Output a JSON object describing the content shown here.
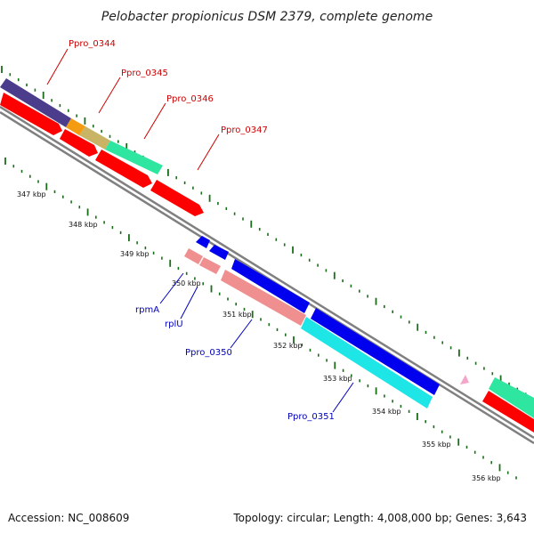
{
  "title": "Pelobacter propionicus DSM 2379, complete genome",
  "footer": {
    "accession": "Accession: NC_008609",
    "topology": "Topology: circular; Length: 4,008,000 bp; Genes: 3,643"
  },
  "colors": {
    "backbone": "#808080",
    "tick": "#1a6e1a",
    "forward_label": "#cc0000",
    "reverse_label": "#0000bb",
    "red": "#ff0000",
    "purple": "#4b3c8c",
    "orange": "#f39c12",
    "khaki": "#c8b464",
    "mint": "#2ee6a0",
    "blue": "#0000ee",
    "salmon": "#f08f8f",
    "cyan": "#1ee6e6",
    "pink": "#f4a6c8"
  },
  "tick_labels": [
    "347 kbp",
    "348 kbp",
    "349 kbp",
    "350 kbp",
    "351 kbp",
    "352 kbp",
    "353 kbp",
    "354 kbp",
    "355 kbp",
    "356 kbp"
  ],
  "forward_genes": [
    "Ppro_0344",
    "Ppro_0345",
    "Ppro_0346",
    "Ppro_0347"
  ],
  "reverse_genes": [
    "rpmA",
    "rplU",
    "Ppro_0350",
    "Ppro_0351"
  ]
}
